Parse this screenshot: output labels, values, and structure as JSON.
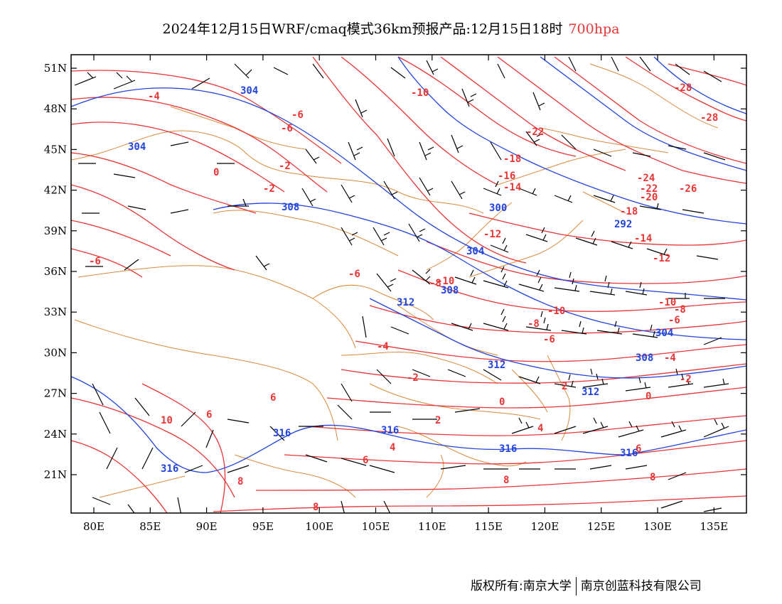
{
  "title": {
    "main": "2024年12月15日WRF/cmaq模式36km预报产品:12月15日18时",
    "level": "700hpa"
  },
  "axes": {
    "lat_labels": [
      "51N",
      "48N",
      "45N",
      "42N",
      "39N",
      "36N",
      "33N",
      "30N",
      "27N",
      "24N",
      "21N"
    ],
    "lon_labels": [
      "80E",
      "85E",
      "90E",
      "95E",
      "100E",
      "105E",
      "110E",
      "115E",
      "120E",
      "125E",
      "130E",
      "135E"
    ]
  },
  "map_labels": {
    "geopotential": [
      "304",
      "304",
      "308",
      "300",
      "292",
      "304",
      "308",
      "312",
      "304",
      "308",
      "312",
      "312",
      "316",
      "316",
      "316",
      "316",
      "316"
    ],
    "temperature": [
      "-4",
      "-6",
      "-6",
      "-2",
      "0",
      "-2",
      "-10",
      "-22",
      "-18",
      "-16",
      "-14",
      "-12",
      "-28",
      "-28",
      "-24",
      "-22",
      "-26",
      "-20",
      "-18",
      "-14",
      "-12",
      "-10",
      "-8",
      "-6",
      "-6",
      "-10",
      "-10",
      "-8",
      "-6",
      "-4",
      "-2",
      "-4",
      "-2",
      "0",
      "0",
      "2",
      "2",
      "4",
      "4",
      "6",
      "6",
      "6",
      "6",
      "8",
      "8",
      "8",
      "10",
      "8",
      "-6",
      "-8"
    ]
  },
  "colors": {
    "temperature": "#e83535",
    "geopotential": "#2244dd",
    "border": "#d98a3a",
    "wind": "#000000",
    "title_level": "#e83535"
  },
  "copyright": {
    "left": "版权所有:南京大学",
    "right": "南京创蓝科技有限公司"
  }
}
